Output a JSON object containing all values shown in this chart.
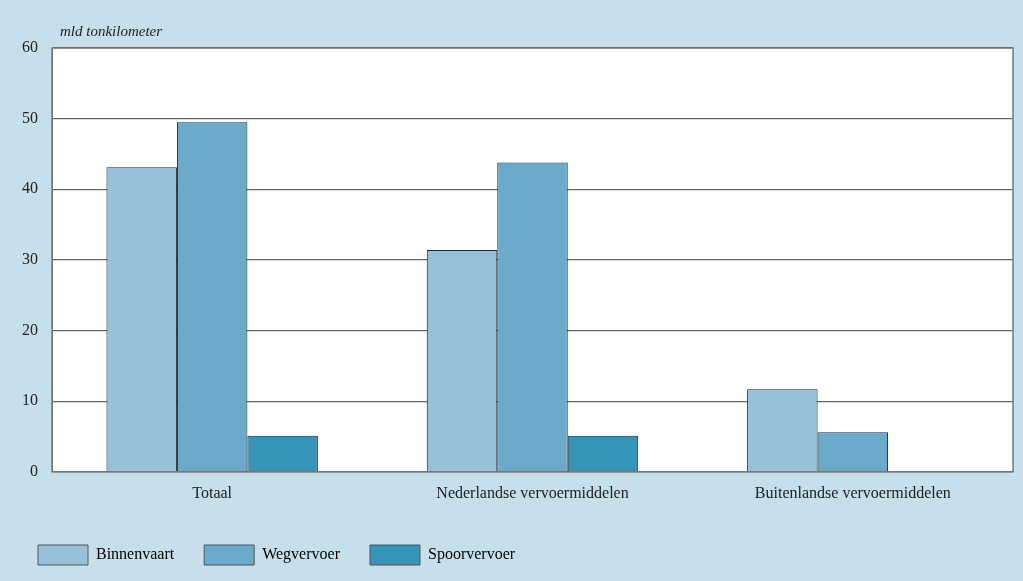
{
  "chart_data": {
    "type": "bar",
    "ylabel": "mld tonkilometer",
    "categories": [
      "Totaal",
      "Nederlandse vervoermiddelen",
      "Buitenlandse vervoermiddelen"
    ],
    "series": [
      {
        "name": "Binnenvaart",
        "color": "#96c1d8",
        "values": [
          43.1,
          31.4,
          11.7
        ]
      },
      {
        "name": "Wegvervoer",
        "color": "#6aaacb",
        "values": [
          49.5,
          43.8,
          5.6
        ]
      },
      {
        "name": "Spoorvervoer",
        "color": "#3594b8",
        "values": [
          5.1,
          5.1,
          null
        ]
      }
    ],
    "ylim": [
      0,
      60
    ],
    "yticks": [
      0,
      10,
      20,
      30,
      40,
      50,
      60
    ],
    "grid": "y",
    "legend": "bottom left"
  }
}
